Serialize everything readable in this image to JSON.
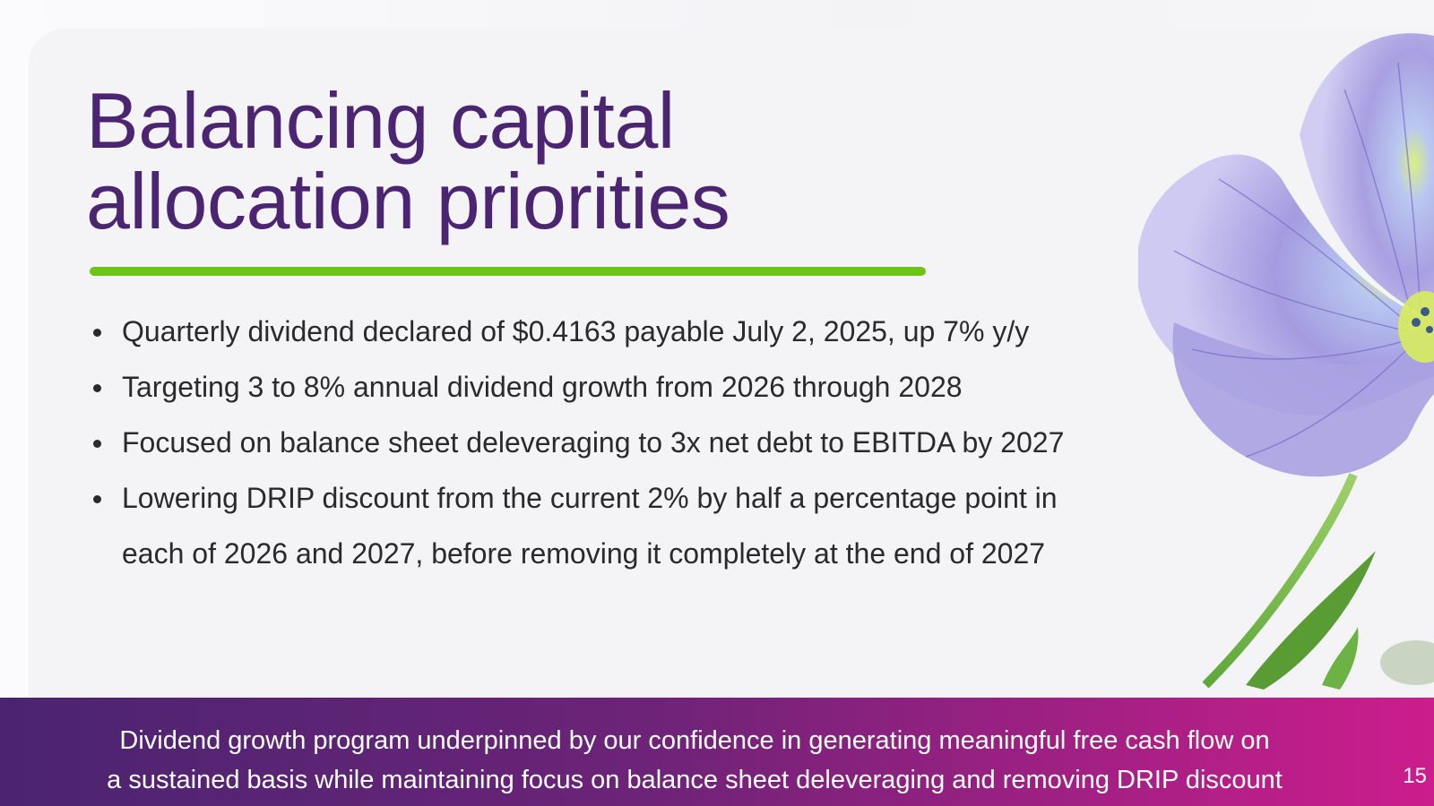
{
  "slide": {
    "title_line1": "Balancing capital",
    "title_line2": "allocation priorities",
    "bullets": [
      {
        "line1": "Quarterly dividend declared of $0.4163 payable July 2, 2025, up 7% y/y",
        "line2": ""
      },
      {
        "line1": "Targeting 3 to 8% annual dividend growth from 2026 through 2028",
        "line2": ""
      },
      {
        "line1": "Focused on balance sheet deleveraging to 3x net debt to EBITDA by 2027",
        "line2": ""
      },
      {
        "line1": "Lowering DRIP discount from the current 2% by half a percentage point in",
        "line2": "each of 2026 and 2027, before removing it completely at the end of 2027"
      }
    ]
  },
  "footer": {
    "line1": "Dividend growth program underpinned by our confidence in generating meaningful free cash flow on",
    "line2": "a sustained basis while maintaining focus on balance sheet deleveraging and removing DRIP discount",
    "page_number": "15"
  },
  "colors": {
    "title": "#4b2571",
    "accent_bar": "#6cc417",
    "footer_start": "#4a2470",
    "footer_end": "#cc1d8d"
  },
  "icons": [
    "flower-image",
    "bullet-dot-icon"
  ]
}
